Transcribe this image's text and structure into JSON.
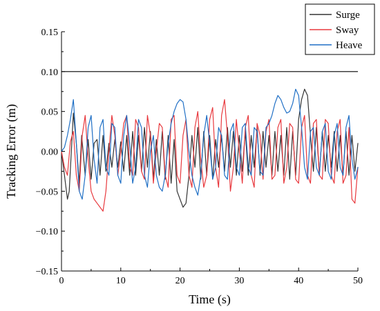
{
  "chart_data": {
    "type": "line",
    "xlabel": "Time (s)",
    "ylabel": "Tracking Error (m)",
    "xlim": [
      0,
      50
    ],
    "ylim": [
      -0.15,
      0.15
    ],
    "x_ticks": [
      0,
      10,
      20,
      30,
      40,
      50
    ],
    "x_tick_labels": [
      "0",
      "10",
      "20",
      "30",
      "40",
      "50"
    ],
    "y_ticks": [
      -0.15,
      -0.1,
      -0.05,
      0.0,
      0.05,
      0.1,
      0.15
    ],
    "y_tick_labels": [
      "−0.15",
      "−0.10",
      "−0.05",
      "0.00",
      "0.05",
      "0.10",
      "0.15"
    ],
    "grid": false,
    "legend_position": "top-right",
    "reference_line": {
      "y": 0.1,
      "color": "#000000"
    },
    "series": [
      {
        "name": "Surge",
        "color": "#333333",
        "x": [
          0,
          0.5,
          1,
          1.3,
          2,
          2.5,
          3,
          3.4,
          4,
          4.5,
          5,
          5.5,
          6,
          6.5,
          7,
          7.5,
          8,
          8.5,
          9,
          9.5,
          10,
          10.5,
          11,
          11.5,
          12,
          12.5,
          13,
          13.5,
          14,
          14.5,
          15,
          15.5,
          16,
          16.5,
          17,
          17.5,
          18,
          18.5,
          19,
          19.5,
          20,
          20.5,
          21,
          21.5,
          22,
          22.5,
          23,
          23.5,
          24,
          24.5,
          25,
          25.5,
          26,
          26.5,
          27,
          27.5,
          28,
          28.5,
          29,
          29.5,
          30,
          30.5,
          31,
          31.5,
          32,
          32.5,
          33,
          33.5,
          34,
          34.5,
          35,
          35.5,
          36,
          36.5,
          37,
          37.5,
          38,
          38.5,
          39,
          39.5,
          40,
          40.5,
          41,
          41.5,
          42,
          42.5,
          43,
          43.5,
          44,
          44.5,
          45,
          45.5,
          46,
          46.5,
          47,
          47.5,
          48,
          48.5,
          49,
          49.5,
          50
        ],
        "values": [
          0.0,
          -0.03,
          -0.06,
          -0.05,
          0.048,
          0.01,
          -0.04,
          0.02,
          -0.03,
          0.015,
          -0.035,
          0.01,
          0.015,
          -0.03,
          0.02,
          -0.025,
          0.01,
          -0.02,
          0.015,
          -0.02,
          0.012,
          -0.025,
          0.02,
          -0.03,
          0.025,
          -0.03,
          0.02,
          -0.025,
          0.03,
          -0.02,
          0.025,
          -0.035,
          0.015,
          -0.03,
          0.025,
          -0.035,
          0.02,
          -0.04,
          0.015,
          -0.05,
          -0.06,
          -0.07,
          -0.065,
          -0.03,
          0.02,
          -0.02,
          0.03,
          -0.035,
          0.025,
          -0.03,
          0.02,
          -0.035,
          0.015,
          -0.02,
          0.02,
          -0.025,
          0.03,
          -0.02,
          0.025,
          -0.03,
          0.02,
          -0.025,
          0.025,
          -0.03,
          0.02,
          -0.02,
          0.03,
          -0.03,
          0.025,
          -0.02,
          0.02,
          -0.03,
          0.025,
          -0.025,
          0.02,
          -0.03,
          0.03,
          -0.035,
          0.025,
          -0.03,
          0.04,
          0.065,
          0.078,
          0.07,
          0.02,
          -0.025,
          0.03,
          -0.03,
          0.025,
          -0.025,
          0.02,
          -0.02,
          0.025,
          -0.025,
          0.02,
          -0.03,
          0.025,
          -0.03,
          0.02,
          -0.025,
          0.01
        ]
      },
      {
        "name": "Sway",
        "color": "#e8383d",
        "x": [
          0,
          0.5,
          1,
          1.5,
          2,
          2.5,
          3,
          3.5,
          4,
          4.5,
          5,
          5.5,
          6,
          6.5,
          7,
          7.5,
          8,
          8.5,
          9,
          9.5,
          10,
          10.5,
          11,
          11.5,
          12,
          12.5,
          13,
          13.5,
          14,
          14.5,
          15,
          15.5,
          16,
          16.5,
          17,
          17.5,
          18,
          18.5,
          19,
          19.5,
          20,
          20.5,
          21,
          21.5,
          22,
          22.5,
          23,
          23.5,
          24,
          24.5,
          25,
          25.5,
          26,
          26.5,
          27,
          27.5,
          28,
          28.5,
          29,
          29.5,
          30,
          30.5,
          31,
          31.5,
          32,
          32.5,
          33,
          33.5,
          34,
          34.5,
          35,
          35.5,
          36,
          36.5,
          37,
          37.5,
          38,
          38.5,
          39,
          39.5,
          40,
          40.5,
          41,
          41.5,
          42,
          42.5,
          43,
          43.5,
          44,
          44.5,
          45,
          45.5,
          46,
          46.5,
          47,
          47.5,
          48,
          48.5,
          49,
          49.5,
          50
        ],
        "values": [
          0.0,
          -0.02,
          -0.03,
          0.012,
          0.025,
          -0.03,
          -0.05,
          0.02,
          0.045,
          -0.01,
          -0.05,
          -0.06,
          -0.065,
          -0.07,
          -0.075,
          -0.05,
          0.0,
          0.045,
          0.02,
          -0.03,
          0.0,
          0.035,
          0.045,
          -0.02,
          -0.03,
          0.04,
          0.03,
          -0.025,
          -0.035,
          0.045,
          0.02,
          -0.04,
          0.0,
          0.035,
          0.03,
          -0.03,
          -0.045,
          0.04,
          0.045,
          -0.03,
          -0.04,
          0.02,
          0.04,
          -0.03,
          -0.045,
          0.03,
          0.05,
          -0.01,
          -0.045,
          -0.03,
          0.04,
          0.055,
          -0.02,
          -0.045,
          0.045,
          0.065,
          0.02,
          -0.05,
          -0.02,
          0.04,
          0.0,
          -0.04,
          0.03,
          0.045,
          -0.03,
          -0.045,
          0.035,
          0.02,
          -0.035,
          0.025,
          0.04,
          -0.035,
          -0.03,
          0.03,
          0.04,
          -0.04,
          -0.02,
          0.035,
          0.03,
          -0.035,
          -0.04,
          0.03,
          0.045,
          -0.03,
          -0.04,
          0.035,
          0.04,
          -0.03,
          -0.035,
          0.04,
          0.035,
          -0.03,
          -0.04,
          0.025,
          0.04,
          -0.04,
          -0.03,
          0.03,
          -0.06,
          -0.065,
          -0.02
        ]
      },
      {
        "name": "Heave",
        "color": "#1f6fc5",
        "x": [
          0,
          0.5,
          1,
          1.5,
          2,
          2.5,
          3,
          3.5,
          4,
          4.5,
          5,
          5.5,
          6,
          6.5,
          7,
          7.5,
          8,
          8.5,
          9,
          9.5,
          10,
          10.5,
          11,
          11.5,
          12,
          12.5,
          13,
          13.5,
          14,
          14.5,
          15,
          15.5,
          16,
          16.5,
          17,
          17.5,
          18,
          18.5,
          19,
          19.5,
          20,
          20.5,
          21,
          21.5,
          22,
          22.5,
          23,
          23.5,
          24,
          24.5,
          25,
          25.5,
          26,
          26.5,
          27,
          27.5,
          28,
          28.5,
          29,
          29.5,
          30,
          30.5,
          31,
          31.5,
          32,
          32.5,
          33,
          33.5,
          34,
          34.5,
          35,
          35.5,
          36,
          36.5,
          37,
          37.5,
          38,
          38.5,
          39,
          39.5,
          40,
          40.5,
          41,
          41.5,
          42,
          42.5,
          43,
          43.5,
          44,
          44.5,
          45,
          45.5,
          46,
          46.5,
          47,
          47.5,
          48,
          48.5,
          49,
          49.5,
          50
        ],
        "values": [
          0.0,
          0.005,
          0.02,
          0.04,
          0.065,
          0.01,
          -0.05,
          -0.06,
          -0.03,
          0.03,
          0.045,
          -0.01,
          -0.04,
          0.03,
          0.04,
          -0.02,
          -0.03,
          0.035,
          0.03,
          -0.03,
          -0.04,
          0.02,
          0.045,
          0.01,
          -0.04,
          -0.02,
          0.04,
          0.03,
          -0.03,
          -0.045,
          0.0,
          0.02,
          -0.03,
          -0.045,
          -0.05,
          -0.03,
          0.01,
          0.035,
          0.05,
          0.06,
          0.065,
          0.062,
          0.04,
          0.0,
          -0.03,
          -0.045,
          -0.055,
          -0.03,
          0.02,
          0.045,
          0.01,
          -0.035,
          -0.02,
          0.03,
          0.02,
          -0.03,
          -0.035,
          0.025,
          0.035,
          -0.02,
          -0.03,
          0.03,
          0.035,
          -0.02,
          -0.03,
          0.03,
          0.025,
          -0.025,
          -0.03,
          0.03,
          0.035,
          0.045,
          0.06,
          0.07,
          0.065,
          0.055,
          0.048,
          0.05,
          0.06,
          0.078,
          0.07,
          0.03,
          -0.02,
          -0.035,
          0.025,
          0.03,
          -0.02,
          -0.03,
          0.025,
          0.035,
          -0.025,
          -0.035,
          0.02,
          0.035,
          -0.02,
          -0.03,
          0.03,
          0.045,
          -0.01,
          -0.035,
          -0.02
        ]
      }
    ]
  }
}
